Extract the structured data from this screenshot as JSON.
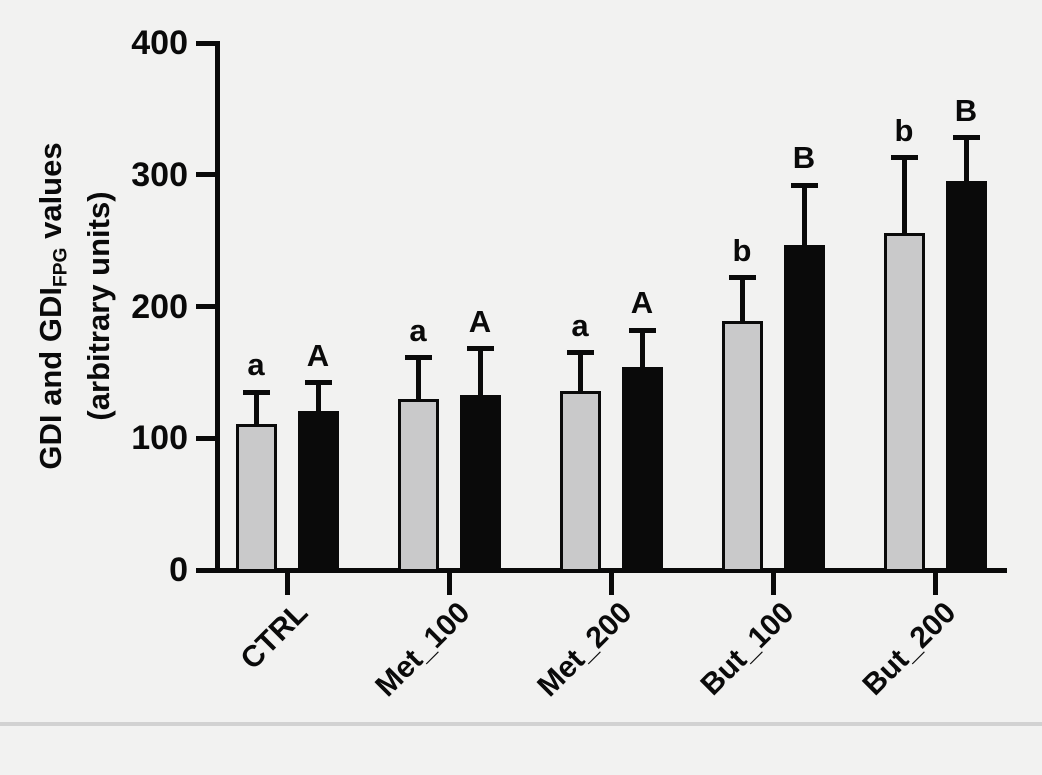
{
  "chart_data": {
    "type": "bar",
    "title": "",
    "ylabel_line1_pre": "GDI and GDI",
    "ylabel_sub": "FPG",
    "ylabel_line1_post": " values",
    "ylabel_line2": "(arbitrary units)",
    "xlabel": "",
    "categories": [
      "CTRL",
      "Met_100",
      "Met_200",
      "But_100",
      "But_200"
    ],
    "series": [
      {
        "name": "GDI",
        "fill_color": "#c9c9ca",
        "outline_color": "#0a0a0a",
        "values": [
          111,
          130,
          136,
          189,
          256
        ],
        "sd": [
          24,
          31,
          29,
          33,
          57
        ],
        "sig_letters": [
          "a",
          "a",
          "a",
          "b",
          "b"
        ]
      },
      {
        "name": "GDI_FPG",
        "fill_color": "#0a0a0a",
        "outline_color": "#0a0a0a",
        "values": [
          121,
          133,
          154,
          247,
          295
        ],
        "sd": [
          21,
          35,
          28,
          45,
          33
        ],
        "sig_letters": [
          "A",
          "A",
          "A",
          "B",
          "B"
        ]
      }
    ],
    "yticks": [
      "0",
      "100",
      "200",
      "300",
      "400"
    ],
    "ytick_values": [
      0,
      100,
      200,
      300,
      400
    ],
    "ylim": [
      0,
      400
    ],
    "grid": false,
    "legend": "none",
    "error_bars": "sd-upper-capped",
    "axis_color": "#0a0a0a",
    "background_color": "#f2f2f1"
  }
}
